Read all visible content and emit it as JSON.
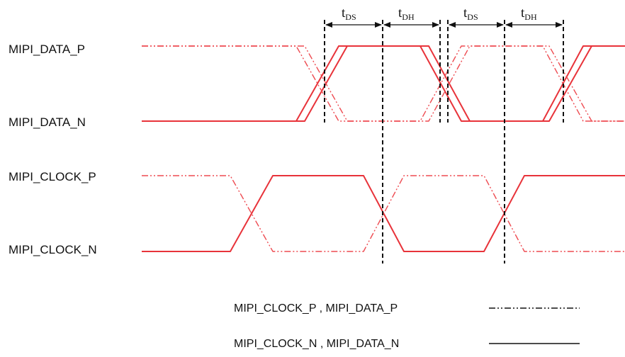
{
  "signals": {
    "data_p": "MIPI_DATA_P",
    "data_n": "MIPI_DATA_N",
    "clock_p": "MIPI_CLOCK_P",
    "clock_n": "MIPI_CLOCK_N"
  },
  "timing": {
    "tds": {
      "main": "t",
      "sub": "DS"
    },
    "tdh": {
      "main": "t",
      "sub": "DH"
    }
  },
  "legend": {
    "dashed_label": "MIPI_CLOCK_P , MIPI_DATA_P",
    "solid_label": "MIPI_CLOCK_N , MIPI_DATA_N"
  },
  "colors": {
    "waveform": "#e8333a",
    "annotation": "#111111"
  }
}
